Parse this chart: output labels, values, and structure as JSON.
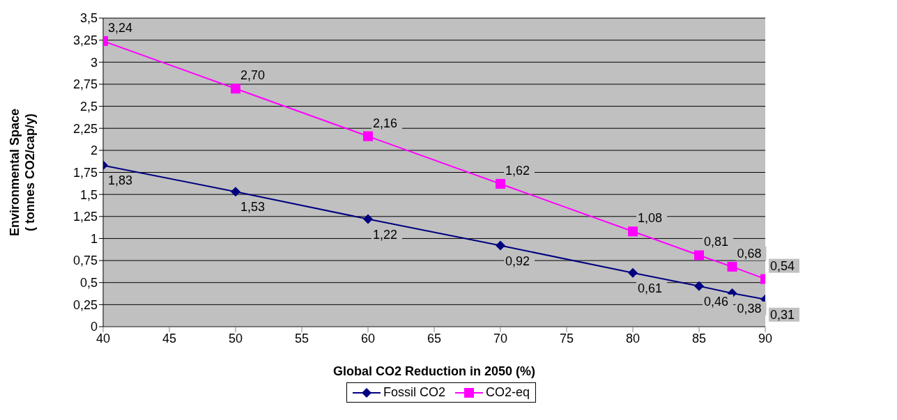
{
  "chart_data": {
    "type": "line",
    "xlabel": "Global CO2 Reduction in 2050 (%)",
    "ylabel": "Environmental Space\n( tonnes CO2/cap/y)",
    "x": [
      40,
      50,
      60,
      70,
      80,
      85,
      87.5,
      90
    ],
    "series": [
      {
        "name": "Fossil CO2",
        "color": "#000080",
        "marker": "diamond",
        "values": [
          1.83,
          1.53,
          1.22,
          0.92,
          0.61,
          0.46,
          0.38,
          0.31
        ],
        "value_labels": [
          "1,83",
          "1,53",
          "1,22",
          "0,92",
          "0,61",
          "0,46",
          "0,38",
          "0,31"
        ]
      },
      {
        "name": "CO2-eq",
        "color": "#ff00ff",
        "marker": "square",
        "values": [
          3.24,
          2.7,
          2.16,
          1.62,
          1.08,
          0.81,
          0.68,
          0.54
        ],
        "value_labels": [
          "3,24",
          "2,70",
          "2,16",
          "1,62",
          "1,08",
          "0,81",
          "0,68",
          "0,54"
        ]
      }
    ],
    "xlim": [
      40,
      90
    ],
    "xticks": [
      40,
      45,
      50,
      55,
      60,
      65,
      70,
      75,
      80,
      85,
      90
    ],
    "ylim": [
      0,
      3.5
    ],
    "yticks": [
      0,
      {
        "value": 0.25,
        "label": "0,25"
      },
      {
        "value": 0.5,
        "label": "0,5"
      },
      {
        "value": 0.75,
        "label": "0,75"
      },
      1,
      {
        "value": 1.25,
        "label": "1,25"
      },
      {
        "value": 1.5,
        "label": "1,5"
      },
      {
        "value": 1.75,
        "label": "1,75"
      },
      2,
      {
        "value": 2.25,
        "label": "2,25"
      },
      {
        "value": 2.5,
        "label": "2,5"
      },
      {
        "value": 2.75,
        "label": "2,75"
      },
      3,
      {
        "value": 3.25,
        "label": "3,25"
      },
      {
        "value": 3.5,
        "label": "3,5"
      }
    ],
    "grid": "y",
    "legend": "bottom",
    "line_style": "solid"
  }
}
